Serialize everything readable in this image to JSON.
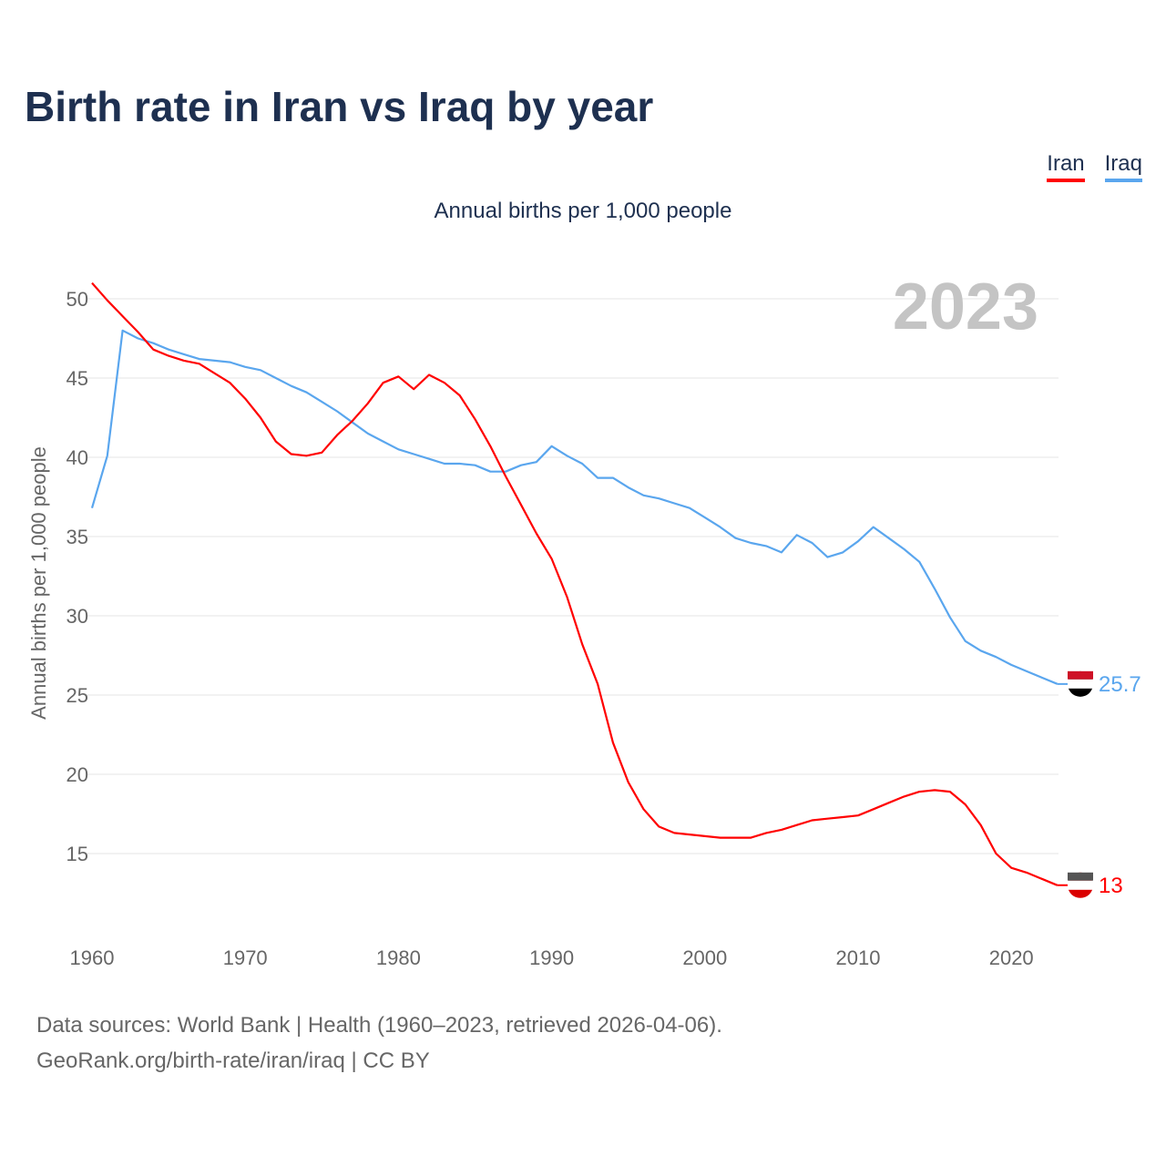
{
  "title": "Birth rate in Iran vs Iraq by year",
  "footer": {
    "line1": "Data sources: World Bank | Health (1960–2023, retrieved 2026-04-06).",
    "line2": "GeoRank.org/birth-rate/iran/iraq | CC BY"
  },
  "chart_data": {
    "type": "line",
    "title": "Birth rate in Iran vs Iraq by year",
    "subtitle": "Annual births per 1,000 people",
    "xlabel": "",
    "ylabel": "Annual births per 1,000 people",
    "year_label": "2023",
    "xlim": [
      1960,
      2023
    ],
    "ylim": [
      10.5,
      52
    ],
    "xticks": [
      1960,
      1970,
      1980,
      1990,
      2000,
      2010,
      2020
    ],
    "yticks": [
      15,
      20,
      25,
      30,
      35,
      40,
      45,
      50
    ],
    "grid": true,
    "legend_position": "top-right",
    "x_start": 1960,
    "series": [
      {
        "name": "Iran",
        "color": "#ff0000",
        "end_label": "13",
        "values": [
          51.0,
          49.9,
          48.9,
          47.9,
          46.8,
          46.4,
          46.1,
          45.9,
          45.3,
          44.7,
          43.7,
          42.5,
          41.0,
          40.2,
          40.1,
          40.3,
          41.4,
          42.3,
          43.4,
          44.7,
          45.1,
          44.3,
          45.2,
          44.7,
          43.9,
          42.4,
          40.7,
          38.8,
          37.0,
          35.2,
          33.6,
          31.2,
          28.2,
          25.7,
          22.0,
          19.5,
          17.8,
          16.7,
          16.3,
          16.2,
          16.1,
          16.0,
          16.0,
          16.0,
          16.3,
          16.5,
          16.8,
          17.1,
          17.2,
          17.3,
          17.4,
          17.8,
          18.2,
          18.6,
          18.9,
          19.0,
          18.9,
          18.1,
          16.8,
          15.0,
          14.1,
          13.8,
          13.4,
          13.0
        ]
      },
      {
        "name": "Iraq",
        "color": "#5aa6ee",
        "end_label": "25.7",
        "values": [
          36.8,
          40.1,
          48.0,
          47.5,
          47.2,
          46.8,
          46.5,
          46.2,
          46.1,
          46.0,
          45.7,
          45.5,
          45.0,
          44.5,
          44.1,
          43.5,
          42.9,
          42.2,
          41.5,
          41.0,
          40.5,
          40.2,
          39.9,
          39.6,
          39.6,
          39.5,
          39.1,
          39.1,
          39.5,
          39.7,
          40.7,
          40.1,
          39.6,
          38.7,
          38.7,
          38.1,
          37.6,
          37.4,
          37.1,
          36.8,
          36.2,
          35.6,
          34.9,
          34.6,
          34.4,
          34.0,
          35.1,
          34.6,
          33.7,
          34.0,
          34.7,
          35.6,
          34.9,
          34.2,
          33.4,
          31.7,
          29.9,
          28.4,
          27.8,
          27.4,
          26.9,
          26.5,
          26.1,
          25.7
        ]
      }
    ]
  }
}
